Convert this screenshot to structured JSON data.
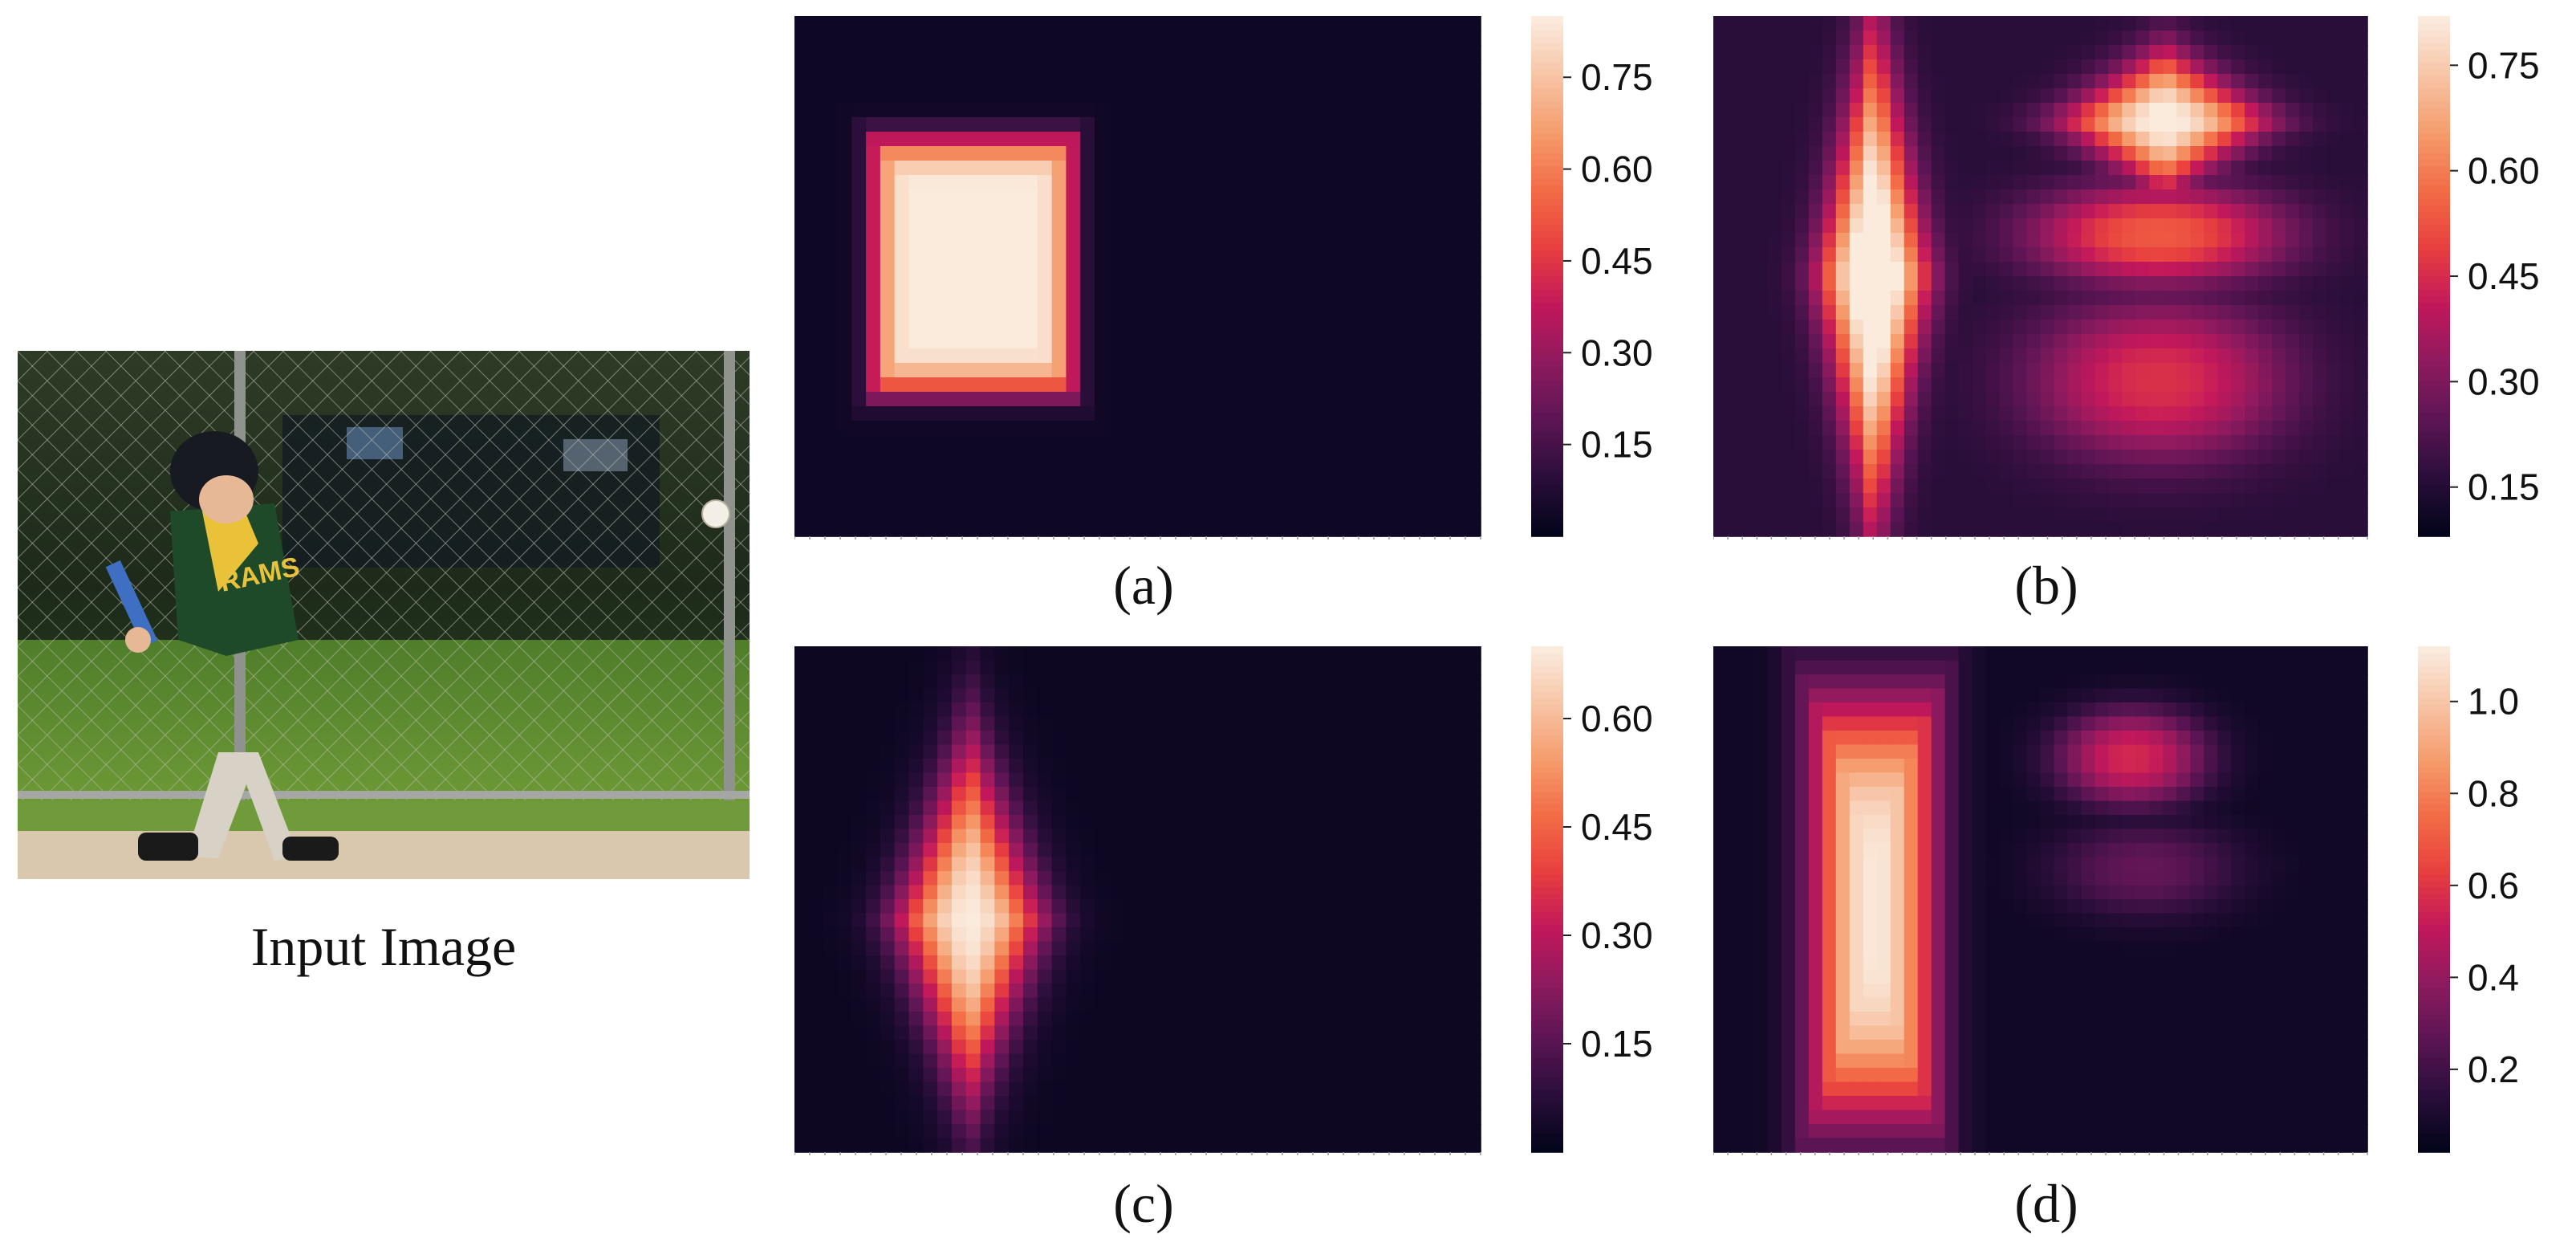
{
  "photo": {
    "caption": "Input Image",
    "text_on_jersey": "RAMS"
  },
  "colors": {
    "cmap": [
      "#03051a",
      "#2a0e3a",
      "#5c1554",
      "#8e1a5e",
      "#c2185b",
      "#e83f3f",
      "#f26b45",
      "#f59b6b",
      "#f7c3a4",
      "#faebdd"
    ]
  },
  "chart_data": [
    {
      "type": "heatmap",
      "label": "(a)",
      "colorbar": {
        "ticks": [
          0.15,
          0.3,
          0.45,
          0.6,
          0.75
        ],
        "tick_labels": [
          "0.15",
          "0.30",
          "0.45",
          "0.60",
          "0.75"
        ],
        "range": [
          0.0,
          0.85
        ]
      },
      "background": 0.03,
      "blobs": [
        {
          "cx": 0.26,
          "cy": 0.48,
          "rx": 0.15,
          "ry": 0.25,
          "peak": 0.84,
          "shape": "rect"
        }
      ]
    },
    {
      "type": "heatmap",
      "label": "(b)",
      "colorbar": {
        "ticks": [
          0.15,
          0.3,
          0.45,
          0.6,
          0.75
        ],
        "tick_labels": [
          "0.15",
          "0.30",
          "0.45",
          "0.60",
          "0.75"
        ],
        "range": [
          0.08,
          0.82
        ]
      },
      "background": 0.16,
      "blobs": [
        {
          "cx": 0.245,
          "cy": 0.5,
          "rx": 0.085,
          "ry": 0.42,
          "peak": 0.78,
          "shape": "diamond"
        },
        {
          "cx": 0.69,
          "cy": 0.2,
          "rx": 0.16,
          "ry": 0.12,
          "peak": 0.68,
          "shape": "diamond"
        },
        {
          "cx": 0.68,
          "cy": 0.42,
          "rx": 0.2,
          "ry": 0.1,
          "peak": 0.38,
          "shape": "ellipse"
        },
        {
          "cx": 0.68,
          "cy": 0.7,
          "rx": 0.2,
          "ry": 0.16,
          "peak": 0.3,
          "shape": "ellipse"
        }
      ]
    },
    {
      "type": "heatmap",
      "label": "(c)",
      "colorbar": {
        "ticks": [
          0.15,
          0.3,
          0.45,
          0.6
        ],
        "tick_labels": [
          "0.15",
          "0.30",
          "0.45",
          "0.60"
        ],
        "range": [
          0.0,
          0.7
        ]
      },
      "background": 0.02,
      "blobs": [
        {
          "cx": 0.255,
          "cy": 0.54,
          "rx": 0.11,
          "ry": 0.32,
          "peak": 0.68,
          "shape": "diamond"
        }
      ]
    },
    {
      "type": "heatmap",
      "label": "(d)",
      "colorbar": {
        "ticks": [
          0.2,
          0.4,
          0.6,
          0.8,
          1.0
        ],
        "tick_labels": [
          "0.2",
          "0.4",
          "0.6",
          "0.8",
          "1.0"
        ],
        "range": [
          0.02,
          1.12
        ]
      },
      "background": 0.06,
      "blobs": [
        {
          "cx": 0.245,
          "cy": 0.52,
          "rx": 0.1,
          "ry": 0.42,
          "peak": 1.05,
          "shape": "rect-tall"
        },
        {
          "cx": 0.64,
          "cy": 0.22,
          "rx": 0.12,
          "ry": 0.1,
          "peak": 0.5,
          "shape": "ellipse"
        },
        {
          "cx": 0.66,
          "cy": 0.44,
          "rx": 0.15,
          "ry": 0.1,
          "peak": 0.22,
          "shape": "ellipse"
        }
      ]
    }
  ]
}
